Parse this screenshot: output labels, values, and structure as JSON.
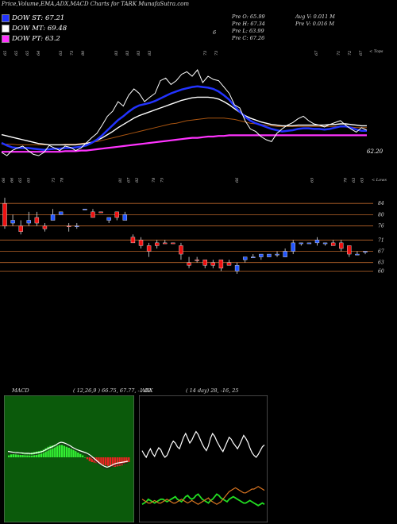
{
  "header": "Price,Volume,EMA,ADX,MACD Charts for TARK MunafaSutra.com",
  "legend": [
    {
      "label": "DOW ST: 67.21",
      "color": "#2233ff"
    },
    {
      "label": "DOW MT: 69.48",
      "color": "#ffffff"
    },
    {
      "label": "DOW PT: 63.2",
      "color": "#ff33ff"
    }
  ],
  "quote": {
    "open": "Pre  O: 65.99",
    "high": "Pre  H: 67.34",
    "low": "Pre  L: 63.99",
    "close": "Pre  C: 67.26",
    "avgvol": "Avg V: 0.011 M",
    "prevol": "Pre  V: 0.016  M"
  },
  "misc_marker": "6",
  "top_edge_label": "< Tops",
  "low_edge_label": "< Lows",
  "last_price_label": "62.20",
  "tops_labels": [
    "65",
    "65",
    "65",
    "64",
    "",
    "63",
    "73",
    "80",
    "",
    "",
    "83",
    "83",
    "83",
    "83",
    "",
    "",
    "",
    "",
    "73",
    "73",
    "",
    "",
    "",
    "",
    "",
    "",
    "",
    "",
    "67",
    "",
    "71",
    "72",
    "67"
  ],
  "lows_labels": [
    "66",
    "66",
    "65",
    "65",
    "",
    "",
    "75",
    "78",
    "",
    "",
    "",
    "",
    "",
    "",
    "81",
    "67",
    "82",
    "",
    "78",
    "75",
    "",
    "",
    "",
    "",
    "",
    "",
    "",
    "",
    "66",
    "",
    "",
    "",
    "",
    "",
    "",
    "",
    "",
    "65",
    "",
    "",
    "",
    "70",
    "63",
    "63"
  ],
  "chart_data": [
    {
      "type": "line",
      "title": "",
      "series": [
        {
          "name": "price",
          "color": "#ffffff",
          "values": [
            64.5,
            64,
            64.8,
            65.2,
            65.5,
            64.8,
            64.2,
            64,
            64.5,
            65.6,
            65.2,
            64.8,
            65.5,
            65.3,
            64.8,
            65.2,
            66,
            66.8,
            67.5,
            68.8,
            70.2,
            71,
            72.5,
            71.8,
            73.5,
            74.5,
            73.8,
            72.5,
            73.2,
            73.8,
            75.8,
            76.2,
            75.2,
            75.8,
            76.8,
            77.2,
            76.5,
            77.5,
            75.5,
            76.5,
            76,
            75.8,
            74.8,
            73.8,
            72,
            71.5,
            69.5,
            68.2,
            67.8,
            67,
            66.5,
            66.2,
            67.5,
            68.2,
            68.8,
            69.2,
            69.8,
            70.2,
            69.5,
            69,
            68.8,
            68.5,
            68.9,
            69.2,
            69.5,
            68.8,
            68.2,
            67.7,
            68.4,
            68
          ]
        },
        {
          "name": "ema-blue",
          "color": "#2233ff",
          "values": [
            66,
            65.6,
            65.3,
            65.2,
            65.2,
            65.2,
            65.1,
            65,
            64.9,
            65,
            65.1,
            65.1,
            65.2,
            65.2,
            65.3,
            65.4,
            65.6,
            66,
            66.5,
            67.2,
            68,
            68.8,
            69.6,
            70.2,
            70.9,
            71.5,
            71.9,
            72.1,
            72.3,
            72.6,
            73,
            73.4,
            73.8,
            74.1,
            74.4,
            74.6,
            74.8,
            74.9,
            74.8,
            74.7,
            74.5,
            74.1,
            73.5,
            72.8,
            71.8,
            70.9,
            70.1,
            69.5,
            69.1,
            68.8,
            68.5,
            68.2,
            68,
            67.8,
            67.9,
            68,
            68.2,
            68.3,
            68.3,
            68.2,
            68.2,
            68.1,
            68.2,
            68.4,
            68.6,
            68.6,
            68.4,
            68.1,
            67.9,
            67.9
          ]
        },
        {
          "name": "ema-white",
          "color": "#ffffff",
          "values": [
            67.3,
            67.1,
            66.9,
            66.7,
            66.5,
            66.3,
            66.1,
            65.9,
            65.8,
            65.7,
            65.7,
            65.7,
            65.7,
            65.7,
            65.7,
            65.8,
            65.9,
            66.1,
            66.4,
            66.8,
            67.3,
            67.8,
            68.4,
            68.9,
            69.4,
            69.9,
            70.3,
            70.6,
            70.9,
            71.2,
            71.5,
            71.8,
            72.1,
            72.4,
            72.7,
            72.9,
            73.1,
            73.2,
            73.2,
            73.2,
            73.1,
            72.9,
            72.5,
            72,
            71.4,
            70.8,
            70.3,
            69.9,
            69.6,
            69.3,
            69.1,
            68.9,
            68.8,
            68.7,
            68.7,
            68.7,
            68.8,
            68.8,
            68.8,
            68.8,
            68.8,
            68.8,
            68.9,
            68.9,
            69,
            69,
            68.9,
            68.8,
            68.7,
            68.7
          ]
        },
        {
          "name": "ema-orange",
          "color": "#aa5511",
          "values": [
            65.8,
            65.8,
            65.8,
            65.7,
            65.7,
            65.7,
            65.7,
            65.7,
            65.7,
            65.7,
            65.7,
            65.7,
            65.8,
            65.8,
            65.8,
            65.9,
            66,
            66.1,
            66.2,
            66.4,
            66.6,
            66.8,
            67,
            67.2,
            67.4,
            67.6,
            67.8,
            68,
            68.2,
            68.4,
            68.6,
            68.8,
            69,
            69.1,
            69.3,
            69.5,
            69.6,
            69.7,
            69.8,
            69.9,
            69.9,
            69.9,
            69.9,
            69.8,
            69.7,
            69.5,
            69.3,
            69.1,
            69,
            68.9,
            68.8,
            68.7,
            68.6,
            68.6,
            68.6,
            68.6,
            68.6,
            68.6,
            68.6,
            68.6,
            68.6,
            68.6,
            68.6,
            68.6,
            68.6,
            68.6,
            68.5,
            68.4,
            68.4,
            68.4
          ]
        },
        {
          "name": "ema-magenta",
          "color": "#ff33ff",
          "values": [
            64.6,
            64.6,
            64.6,
            64.6,
            64.6,
            64.6,
            64.6,
            64.6,
            64.6,
            64.6,
            64.6,
            64.6,
            64.7,
            64.7,
            64.7,
            64.8,
            64.8,
            64.9,
            65,
            65.1,
            65.2,
            65.3,
            65.4,
            65.5,
            65.6,
            65.7,
            65.8,
            65.9,
            66,
            66.1,
            66.2,
            66.3,
            66.4,
            66.5,
            66.6,
            66.7,
            66.8,
            66.8,
            66.9,
            67,
            67,
            67.1,
            67.1,
            67.2,
            67.2,
            67.2,
            67.2,
            67.2,
            67.2,
            67.2,
            67.2,
            67.2,
            67.2,
            67.2,
            67.2,
            67.2,
            67.2,
            67.2,
            67.2,
            67.2,
            67.2,
            67.2,
            67.2,
            67.2,
            67.2,
            67.2,
            67.2,
            67.2,
            67.2,
            67.2
          ]
        }
      ]
    },
    {
      "type": "candlestick",
      "y_ticks": [
        "84",
        "80",
        "76",
        "71",
        "67",
        "63",
        "60"
      ],
      "candles": [
        {
          "o": 84,
          "c": 76,
          "h": 86,
          "l": 75,
          "up": false
        },
        {
          "o": 77,
          "c": 78,
          "h": 80,
          "l": 76,
          "up": true
        },
        {
          "o": 76,
          "c": 74,
          "h": 78,
          "l": 73,
          "up": false
        },
        {
          "o": 77,
          "c": 78,
          "h": 81,
          "l": 76,
          "up": true
        },
        {
          "o": 79,
          "c": 77,
          "h": 81,
          "l": 76,
          "up": false
        },
        {
          "o": 76,
          "c": 75,
          "h": 77,
          "l": 74,
          "up": false
        },
        {
          "o": 78,
          "c": 80,
          "h": 82,
          "l": 78,
          "up": true
        },
        {
          "o": 80,
          "c": 81,
          "h": 81,
          "l": 80,
          "up": true
        },
        {
          "o": 76,
          "c": 76,
          "h": 77,
          "l": 74,
          "up": false
        },
        {
          "o": 76,
          "c": 76,
          "h": 77,
          "l": 75,
          "up": true
        },
        {
          "o": 82,
          "c": 82,
          "h": 82,
          "l": 82,
          "up": true
        },
        {
          "o": 81,
          "c": 79,
          "h": 82,
          "l": 79,
          "up": false
        },
        {
          "o": 81,
          "c": 81,
          "h": 81,
          "l": 81,
          "up": false
        },
        {
          "o": 78,
          "c": 79,
          "h": 79,
          "l": 77,
          "up": true
        },
        {
          "o": 81,
          "c": 79,
          "h": 81,
          "l": 78,
          "up": false
        },
        {
          "o": 78,
          "c": 80,
          "h": 81,
          "l": 78,
          "up": true
        },
        {
          "o": 72,
          "c": 70,
          "h": 73,
          "l": 70,
          "up": false
        },
        {
          "o": 71,
          "c": 69,
          "h": 72,
          "l": 68,
          "up": false
        },
        {
          "o": 69,
          "c": 67,
          "h": 70,
          "l": 65,
          "up": false
        },
        {
          "o": 70,
          "c": 69,
          "h": 71,
          "l": 68,
          "up": false
        },
        {
          "o": 70,
          "c": 70,
          "h": 71,
          "l": 70,
          "up": false
        },
        {
          "o": 70,
          "c": 70,
          "h": 70,
          "l": 70,
          "up": false
        },
        {
          "o": 69,
          "c": 66,
          "h": 70,
          "l": 64,
          "up": false
        },
        {
          "o": 63,
          "c": 62,
          "h": 65,
          "l": 61,
          "up": false
        },
        {
          "o": 64,
          "c": 64,
          "h": 65,
          "l": 63,
          "up": false
        },
        {
          "o": 64,
          "c": 62,
          "h": 64,
          "l": 61,
          "up": false
        },
        {
          "o": 63,
          "c": 62,
          "h": 64,
          "l": 61,
          "up": false
        },
        {
          "o": 64,
          "c": 61,
          "h": 64,
          "l": 60,
          "up": false
        },
        {
          "o": 63,
          "c": 62,
          "h": 64,
          "l": 62,
          "up": false
        },
        {
          "o": 60,
          "c": 62,
          "h": 63,
          "l": 59,
          "up": true
        },
        {
          "o": 64,
          "c": 65,
          "h": 65,
          "l": 63,
          "up": true
        },
        {
          "o": 65,
          "c": 65,
          "h": 66,
          "l": 65,
          "up": true
        },
        {
          "o": 65,
          "c": 66,
          "h": 66,
          "l": 64,
          "up": true
        },
        {
          "o": 65,
          "c": 66,
          "h": 66,
          "l": 65,
          "up": true
        },
        {
          "o": 66,
          "c": 66,
          "h": 67,
          "l": 65,
          "up": true
        },
        {
          "o": 65,
          "c": 67,
          "h": 68,
          "l": 65,
          "up": true
        },
        {
          "o": 67,
          "c": 70,
          "h": 71,
          "l": 66,
          "up": true
        },
        {
          "o": 70,
          "c": 70,
          "h": 70,
          "l": 69,
          "up": true
        },
        {
          "o": 70,
          "c": 70,
          "h": 70,
          "l": 70,
          "up": true
        },
        {
          "o": 70,
          "c": 71,
          "h": 72,
          "l": 69,
          "up": true
        },
        {
          "o": 70,
          "c": 70,
          "h": 70,
          "l": 69,
          "up": true
        },
        {
          "o": 70,
          "c": 69,
          "h": 71,
          "l": 69,
          "up": false
        },
        {
          "o": 70,
          "c": 68,
          "h": 71,
          "l": 67,
          "up": false
        },
        {
          "o": 69,
          "c": 66,
          "h": 69,
          "l": 65,
          "up": false
        },
        {
          "o": 66,
          "c": 66,
          "h": 67,
          "l": 66,
          "up": true
        },
        {
          "o": 67,
          "c": 67,
          "h": 67,
          "l": 66,
          "up": true
        }
      ]
    },
    {
      "type": "bar",
      "title": "MACD",
      "params": "( 12,26,9 ) 66.75,  67.77,  -1.02",
      "values": [
        0.2,
        0.3,
        0.35,
        0.4,
        0.3,
        0.35,
        0.4,
        0.45,
        0.45,
        0.4,
        0.5,
        0.55,
        0.6,
        0.65,
        0.7,
        0.8,
        0.95,
        1.1,
        1.2,
        1.25,
        1.3,
        1.3,
        1.3,
        1.3,
        1.2,
        1.1,
        1.0,
        0.9,
        0.8,
        0.7,
        0.5,
        0.35,
        0.2,
        0,
        -0.2,
        -0.4,
        -0.5,
        -0.55,
        -0.6,
        -0.65,
        -0.7,
        -0.8,
        -0.85,
        -0.9,
        -0.95,
        -1.0,
        -1.0,
        -0.95,
        -0.9,
        -0.85,
        -0.7,
        -0.55,
        -0.5
      ],
      "macd_line": [
        1.5,
        1.4,
        1.3,
        1.25,
        1.2,
        1.15,
        1.1,
        1.05,
        1.0,
        1.0,
        0.95,
        1.0,
        1.1,
        1.2,
        1.35,
        1.5,
        1.8,
        2.1,
        2.4,
        2.6,
        2.9,
        3.2,
        3.6,
        3.8,
        3.7,
        3.5,
        3.2,
        2.9,
        2.5,
        2.2,
        1.9,
        1.7,
        1.5,
        1.3,
        1.1,
        0.8,
        0.4,
        -0.1,
        -0.6,
        -1.1,
        -1.6,
        -2.0,
        -2.3,
        -2.5,
        -2.3,
        -2.0,
        -1.7,
        -1.5,
        -1.4,
        -1.3,
        -1.2,
        -1.1,
        -1.0
      ]
    },
    {
      "type": "line",
      "title": "ADX",
      "params": "( 14  day) 28,  -16,  25",
      "series": [
        {
          "name": "adx",
          "color": "#ffffff",
          "values": [
            42,
            38,
            35,
            40,
            44,
            39,
            36,
            41,
            45,
            43,
            38,
            35,
            37,
            42,
            48,
            52,
            50,
            46,
            44,
            50,
            56,
            60,
            55,
            50,
            53,
            58,
            62,
            59,
            54,
            49,
            45,
            42,
            47,
            55,
            60,
            57,
            52,
            48,
            44,
            41,
            46,
            51,
            56,
            54,
            50,
            47,
            44,
            48,
            53,
            58,
            55,
            51,
            45,
            40,
            37,
            35,
            38,
            42,
            46,
            48
          ]
        },
        {
          "name": "plus-di",
          "color": "#22dd22",
          "values": [
            8,
            9,
            10,
            12,
            11,
            10,
            9,
            10,
            11,
            12,
            12,
            11,
            10,
            11,
            12,
            13,
            14,
            12,
            11,
            10,
            12,
            14,
            15,
            13,
            12,
            13,
            15,
            16,
            14,
            12,
            11,
            10,
            9,
            11,
            12,
            14,
            16,
            15,
            13,
            12,
            11,
            10,
            12,
            13,
            14,
            13,
            12,
            11,
            10,
            9,
            9,
            10,
            11,
            10,
            9,
            8,
            7,
            8,
            9,
            8
          ]
        },
        {
          "name": "minus-di",
          "color": "#dd7722",
          "values": [
            12,
            11,
            10,
            9,
            9,
            10,
            11,
            10,
            9,
            9,
            10,
            11,
            12,
            11,
            10,
            9,
            9,
            10,
            11,
            12,
            11,
            10,
            9,
            10,
            11,
            10,
            9,
            8,
            9,
            10,
            11,
            12,
            13,
            11,
            10,
            9,
            8,
            9,
            10,
            12,
            14,
            16,
            18,
            19,
            20,
            21,
            20,
            19,
            18,
            17,
            17,
            18,
            19,
            20,
            20,
            21,
            22,
            21,
            20,
            19
          ]
        }
      ]
    }
  ]
}
